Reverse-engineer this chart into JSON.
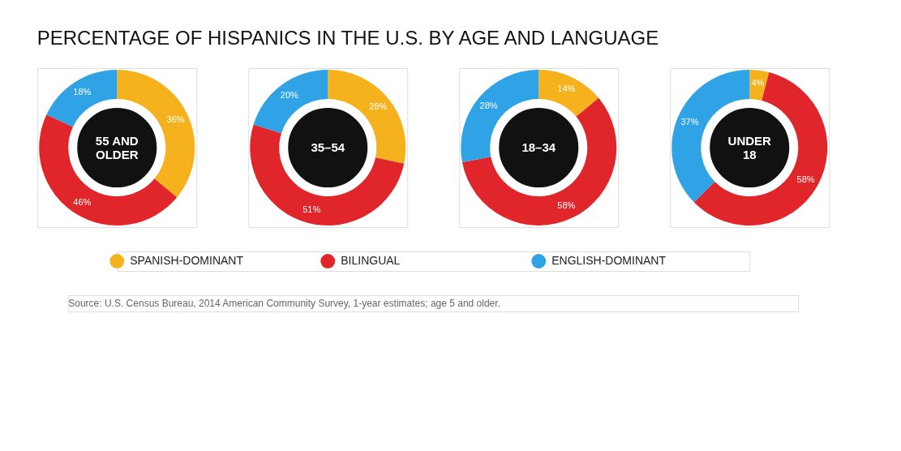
{
  "chart_data": {
    "type": "donut",
    "title": "PERCENTAGE OF HISPANICS IN THE U.S. BY AGE AND LANGUAGE",
    "annotations": [
      "Source: U.S. Census Bureau, 2014 American Community Survey, 1-year estimates; age 5 and older."
    ],
    "categories": [
      "SPANISH-DOMINANT",
      "BILINGUAL",
      "ENGLISH-DOMINANT"
    ],
    "colors": [
      "#f5b21c",
      "#e0262a",
      "#2fa3e6"
    ],
    "legend": "bottom",
    "series": [
      {
        "name": "55 AND OLDER",
        "values": [
          36,
          46,
          18
        ],
        "value_labels": [
          "36%",
          "46%",
          "18%"
        ]
      },
      {
        "name": "35–54",
        "values": [
          28,
          51,
          20
        ],
        "value_labels": [
          "28%",
          "51%",
          "20%"
        ]
      },
      {
        "name": "18–34",
        "values": [
          14,
          58,
          28
        ],
        "value_labels": [
          "14%",
          "58%",
          "28%"
        ]
      },
      {
        "name": "UNDER 18",
        "values": [
          4,
          58,
          37
        ],
        "value_labels": [
          "4%",
          "58%",
          "37%"
        ]
      }
    ]
  }
}
